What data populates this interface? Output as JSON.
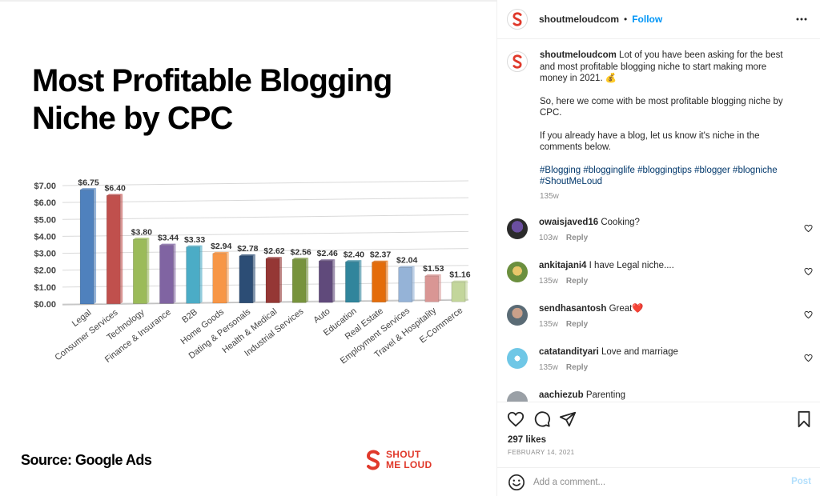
{
  "post": {
    "headline_line1": "Most Profitable Blogging",
    "headline_line2": "Niche by CPC",
    "source": "Source: Google Ads",
    "brand_line1": "SHOUT",
    "brand_line2": "ME LOUD"
  },
  "chart_data": {
    "type": "bar",
    "title": "",
    "xlabel": "",
    "ylabel": "",
    "ylim": [
      0,
      7
    ],
    "yticks": [
      "$0.00",
      "$1.00",
      "$2.00",
      "$3.00",
      "$4.00",
      "$5.00",
      "$6.00",
      "$7.00"
    ],
    "categories": [
      "Legal",
      "Consumer Services",
      "Technology",
      "Finance & Insurance",
      "B2B",
      "Home Goods",
      "Dating & Personals",
      "Health & Medical",
      "Industrial Services",
      "Auto",
      "Education",
      "Real Estate",
      "Employment Services",
      "Travel & Hospitality",
      "E-Commerce"
    ],
    "values": [
      6.75,
      6.4,
      3.8,
      3.44,
      3.33,
      2.94,
      2.78,
      2.62,
      2.56,
      2.46,
      2.4,
      2.37,
      2.04,
      1.53,
      1.16
    ],
    "labels": [
      "$6.75",
      "$6.40",
      "$3.80",
      "$3.44",
      "$3.33",
      "$2.94",
      "$2.78",
      "$2.62",
      "$2.56",
      "$2.46",
      "$2.40",
      "$2.37",
      "$2.04",
      "$1.53",
      "$1.16"
    ],
    "colors": [
      "#4f81bd",
      "#c0504d",
      "#9bbb59",
      "#8064a2",
      "#4bacc6",
      "#f79646",
      "#2c4d75",
      "#953735",
      "#77933c",
      "#604a7b",
      "#31859c",
      "#e46c0a",
      "#95b3d7",
      "#d99694",
      "#c3d69b"
    ],
    "grid": true
  },
  "panel": {
    "username": "shoutmeloudcom",
    "separator": "•",
    "follow_label": "Follow",
    "caption": {
      "username": "shoutmeloudcom",
      "p1": "Lot of you have been asking for the best and most profitable blogging niche to start making more money in 2021. 💰",
      "p2": "So, here we come with be most profitable blogging niche by CPC.",
      "p3": "If you already have a blog, let us know it's niche in the comments below.",
      "tags": "#Blogging #blogginglife #bloggingtips #blogger #blogniche #ShoutMeLoud",
      "time": "135w"
    },
    "comments": [
      {
        "username": "owaisjaved16",
        "text": "Cooking?",
        "time": "103w",
        "reply": "Reply"
      },
      {
        "username": "ankitajani4",
        "text": "I have Legal niche....",
        "time": "135w",
        "reply": "Reply"
      },
      {
        "username": "sendhasantosh",
        "text": "Great❤️",
        "time": "135w",
        "reply": "Reply"
      },
      {
        "username": "catatandityari",
        "text": "Love and marriage",
        "time": "135w",
        "reply": "Reply"
      },
      {
        "username": "aachiezub",
        "text": "Parenting",
        "time": "",
        "reply": ""
      }
    ],
    "likes": "297 likes",
    "date": "FEBRUARY 14, 2021",
    "add_comment_placeholder": "Add a comment...",
    "post_label": "Post"
  },
  "colors": {
    "accent": "#0095f6",
    "brand_red": "#e0392b",
    "post_disabled": "#b2dffc",
    "muted": "#8e8e8e"
  }
}
